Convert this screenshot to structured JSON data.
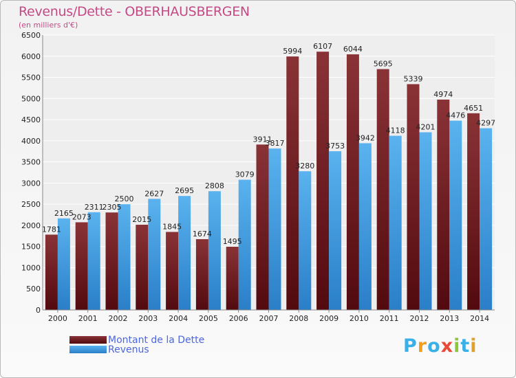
{
  "header": {
    "title": "Revenus/Dette - OBERHAUSBERGEN",
    "subtitle": "(en milliers d'€)"
  },
  "legend": {
    "items": [
      {
        "label": "Montant de la Dette",
        "color": "#7a2226"
      },
      {
        "label": "Revenus",
        "color": "#3d9be0"
      }
    ]
  },
  "logo": {
    "text": "Proxiti",
    "letters": [
      "P",
      "r",
      "o",
      "x",
      "i",
      "t",
      "i"
    ],
    "colors": [
      "#3ab0e8",
      "#f0a020",
      "#3ab0e8",
      "#e84a3a",
      "#8cc63e",
      "#3ab0e8",
      "#e0a030"
    ]
  },
  "chart_data": {
    "type": "bar",
    "title": "Revenus/Dette - OBERHAUSBERGEN",
    "subtitle": "(en milliers d'€)",
    "xlabel": "",
    "ylabel": "",
    "ylim": [
      0,
      6500
    ],
    "yticks": [
      0,
      500,
      1000,
      1500,
      2000,
      2500,
      3000,
      3500,
      4000,
      4500,
      5000,
      5500,
      6000,
      6500
    ],
    "grid": true,
    "legend_position": "bottom-left",
    "categories": [
      "2000",
      "2001",
      "2002",
      "2003",
      "2004",
      "2005",
      "2006",
      "2007",
      "2008",
      "2009",
      "2010",
      "2011",
      "2012",
      "2013",
      "2014"
    ],
    "series": [
      {
        "name": "Montant de la Dette",
        "color": "#7a2226",
        "values": [
          1781,
          2073,
          2305,
          2015,
          1845,
          1674,
          1495,
          3911,
          5994,
          6107,
          6044,
          5695,
          5339,
          4974,
          4651
        ],
        "labels": [
          "1781",
          "2073",
          "2305",
          "2015",
          "1845",
          "1674",
          "1495",
          "3911",
          "5994",
          "6107",
          "6044",
          "5695",
          "5339",
          "4974",
          "4651"
        ]
      },
      {
        "name": "Revenus",
        "color": "#3d9be0",
        "values": [
          2165,
          2311,
          2500,
          2627,
          2695,
          2808,
          3079,
          3817,
          3280,
          3753,
          3942,
          4118,
          4201,
          4476,
          4297
        ],
        "labels": [
          "2165",
          "2311",
          "2500",
          "2627",
          "2695",
          "2808",
          "3079",
          "3817",
          "3280",
          "3753",
          "3942",
          "4118",
          "4201",
          "4476",
          "4297"
        ]
      }
    ]
  }
}
